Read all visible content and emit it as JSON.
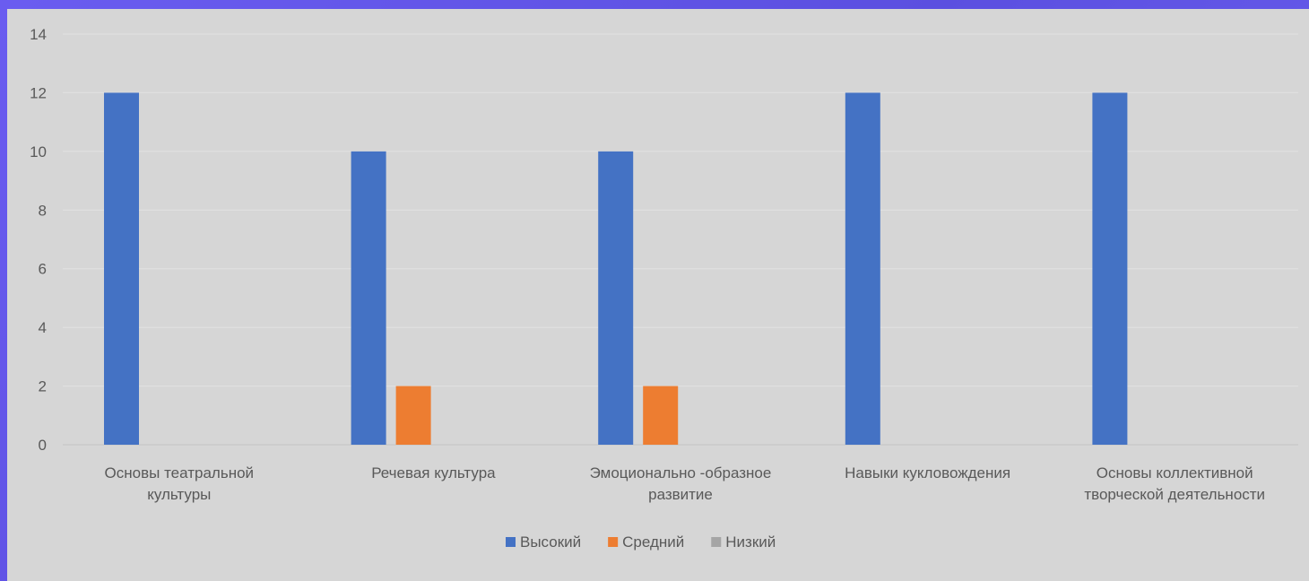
{
  "chart_data": {
    "type": "bar",
    "categories": [
      [
        "Основы театральной",
        "культуры"
      ],
      [
        "Речевая культура"
      ],
      [
        "Эмоционально -образное",
        "развитие"
      ],
      [
        "Навыки кукловождения"
      ],
      [
        "Основы коллективной",
        "творческой деятельности"
      ]
    ],
    "series": [
      {
        "name": "Высокий",
        "color": "#4472c4",
        "values": [
          12,
          10,
          10,
          12,
          12
        ]
      },
      {
        "name": "Средний",
        "color": "#ed7d31",
        "values": [
          0,
          2,
          2,
          0,
          0
        ]
      },
      {
        "name": "Низкий",
        "color": "#a5a5a5",
        "values": [
          0,
          0,
          0,
          0,
          0
        ]
      }
    ],
    "yticks": [
      "0",
      "2",
      "4",
      "6",
      "8",
      "10",
      "12",
      "14"
    ],
    "ylim": [
      0,
      14
    ],
    "grid": true,
    "legend_position": "bottom"
  }
}
